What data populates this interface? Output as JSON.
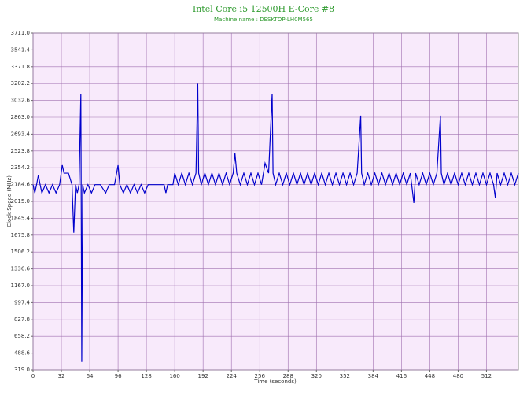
{
  "chart_data": {
    "type": "line",
    "title": "Intel Core i5 12500H E-Core #8",
    "subtitle": "Machine name : DESKTOP-LH0M565",
    "x_label": "Time (seconds)",
    "y_label": "Clock Speed (MHz)",
    "color": "#0000cc",
    "grid": true,
    "xlim": [
      0,
      548
    ],
    "xticks": [
      0,
      32,
      64,
      96,
      128,
      160,
      192,
      224,
      256,
      288,
      320,
      352,
      384,
      416,
      448,
      480,
      512
    ],
    "ylim": [
      319,
      3711
    ],
    "yticks": [
      {
        "value": 319,
        "label": "319.0"
      },
      488.6,
      658.2,
      827.8,
      997.4,
      {
        "value": 1167,
        "label": "1167.0"
      },
      1336.6,
      1506.2,
      1675.8,
      1845.4,
      {
        "value": 2015,
        "label": "2015.0"
      },
      2184.6,
      2354.2,
      2523.8,
      2693.4,
      {
        "value": 2863,
        "label": "2863.0"
      },
      3032.6,
      3202.2,
      3371.8,
      3541.4,
      {
        "value": 3711,
        "label": "3711.0"
      }
    ],
    "x": [
      0,
      2,
      4,
      6,
      8,
      10,
      14,
      18,
      22,
      26,
      30,
      33,
      35,
      40,
      44,
      46,
      48,
      50,
      52,
      54,
      55,
      56,
      58,
      62,
      66,
      70,
      76,
      82,
      86,
      92,
      96,
      98,
      102,
      106,
      110,
      114,
      118,
      122,
      126,
      130,
      134,
      140,
      148,
      150,
      152,
      158,
      160,
      164,
      168,
      172,
      176,
      180,
      184,
      186,
      187,
      190,
      194,
      198,
      202,
      206,
      210,
      214,
      218,
      222,
      226,
      228,
      230,
      234,
      238,
      242,
      246,
      250,
      254,
      258,
      262,
      266,
      270,
      271,
      274,
      278,
      282,
      286,
      290,
      294,
      298,
      302,
      306,
      310,
      314,
      318,
      322,
      326,
      330,
      334,
      338,
      342,
      346,
      350,
      354,
      358,
      362,
      366,
      370,
      371,
      374,
      378,
      382,
      386,
      390,
      394,
      398,
      402,
      406,
      410,
      414,
      418,
      422,
      426,
      430,
      432,
      436,
      440,
      444,
      448,
      452,
      456,
      460,
      461,
      464,
      468,
      472,
      476,
      480,
      484,
      488,
      492,
      496,
      500,
      504,
      508,
      512,
      516,
      520,
      522,
      524,
      528,
      532,
      536,
      540,
      544,
      548
    ],
    "values": [
      2184,
      2100,
      2184,
      2280,
      2184,
      2100,
      2184,
      2100,
      2184,
      2100,
      2184,
      2380,
      2300,
      2300,
      2184,
      1700,
      2184,
      2100,
      2184,
      3100,
      400,
      2184,
      2100,
      2184,
      2100,
      2184,
      2184,
      2100,
      2184,
      2184,
      2380,
      2184,
      2100,
      2184,
      2100,
      2184,
      2100,
      2184,
      2100,
      2184,
      2184,
      2184,
      2184,
      2100,
      2184,
      2184,
      2300,
      2184,
      2300,
      2184,
      2300,
      2184,
      2300,
      3200,
      2300,
      2184,
      2300,
      2184,
      2300,
      2184,
      2300,
      2184,
      2300,
      2184,
      2300,
      2500,
      2300,
      2184,
      2300,
      2184,
      2300,
      2184,
      2300,
      2184,
      2400,
      2300,
      3100,
      2300,
      2184,
      2300,
      2184,
      2300,
      2184,
      2300,
      2184,
      2300,
      2184,
      2300,
      2184,
      2300,
      2184,
      2300,
      2184,
      2300,
      2184,
      2300,
      2184,
      2300,
      2184,
      2300,
      2184,
      2300,
      2880,
      2300,
      2184,
      2300,
      2184,
      2300,
      2184,
      2300,
      2184,
      2300,
      2184,
      2300,
      2184,
      2300,
      2184,
      2300,
      2000,
      2300,
      2184,
      2300,
      2184,
      2300,
      2184,
      2300,
      2880,
      2300,
      2184,
      2300,
      2184,
      2300,
      2184,
      2300,
      2184,
      2300,
      2184,
      2300,
      2184,
      2300,
      2184,
      2300,
      2184,
      2050,
      2300,
      2184,
      2300,
      2184,
      2300,
      2184,
      2300
    ]
  }
}
